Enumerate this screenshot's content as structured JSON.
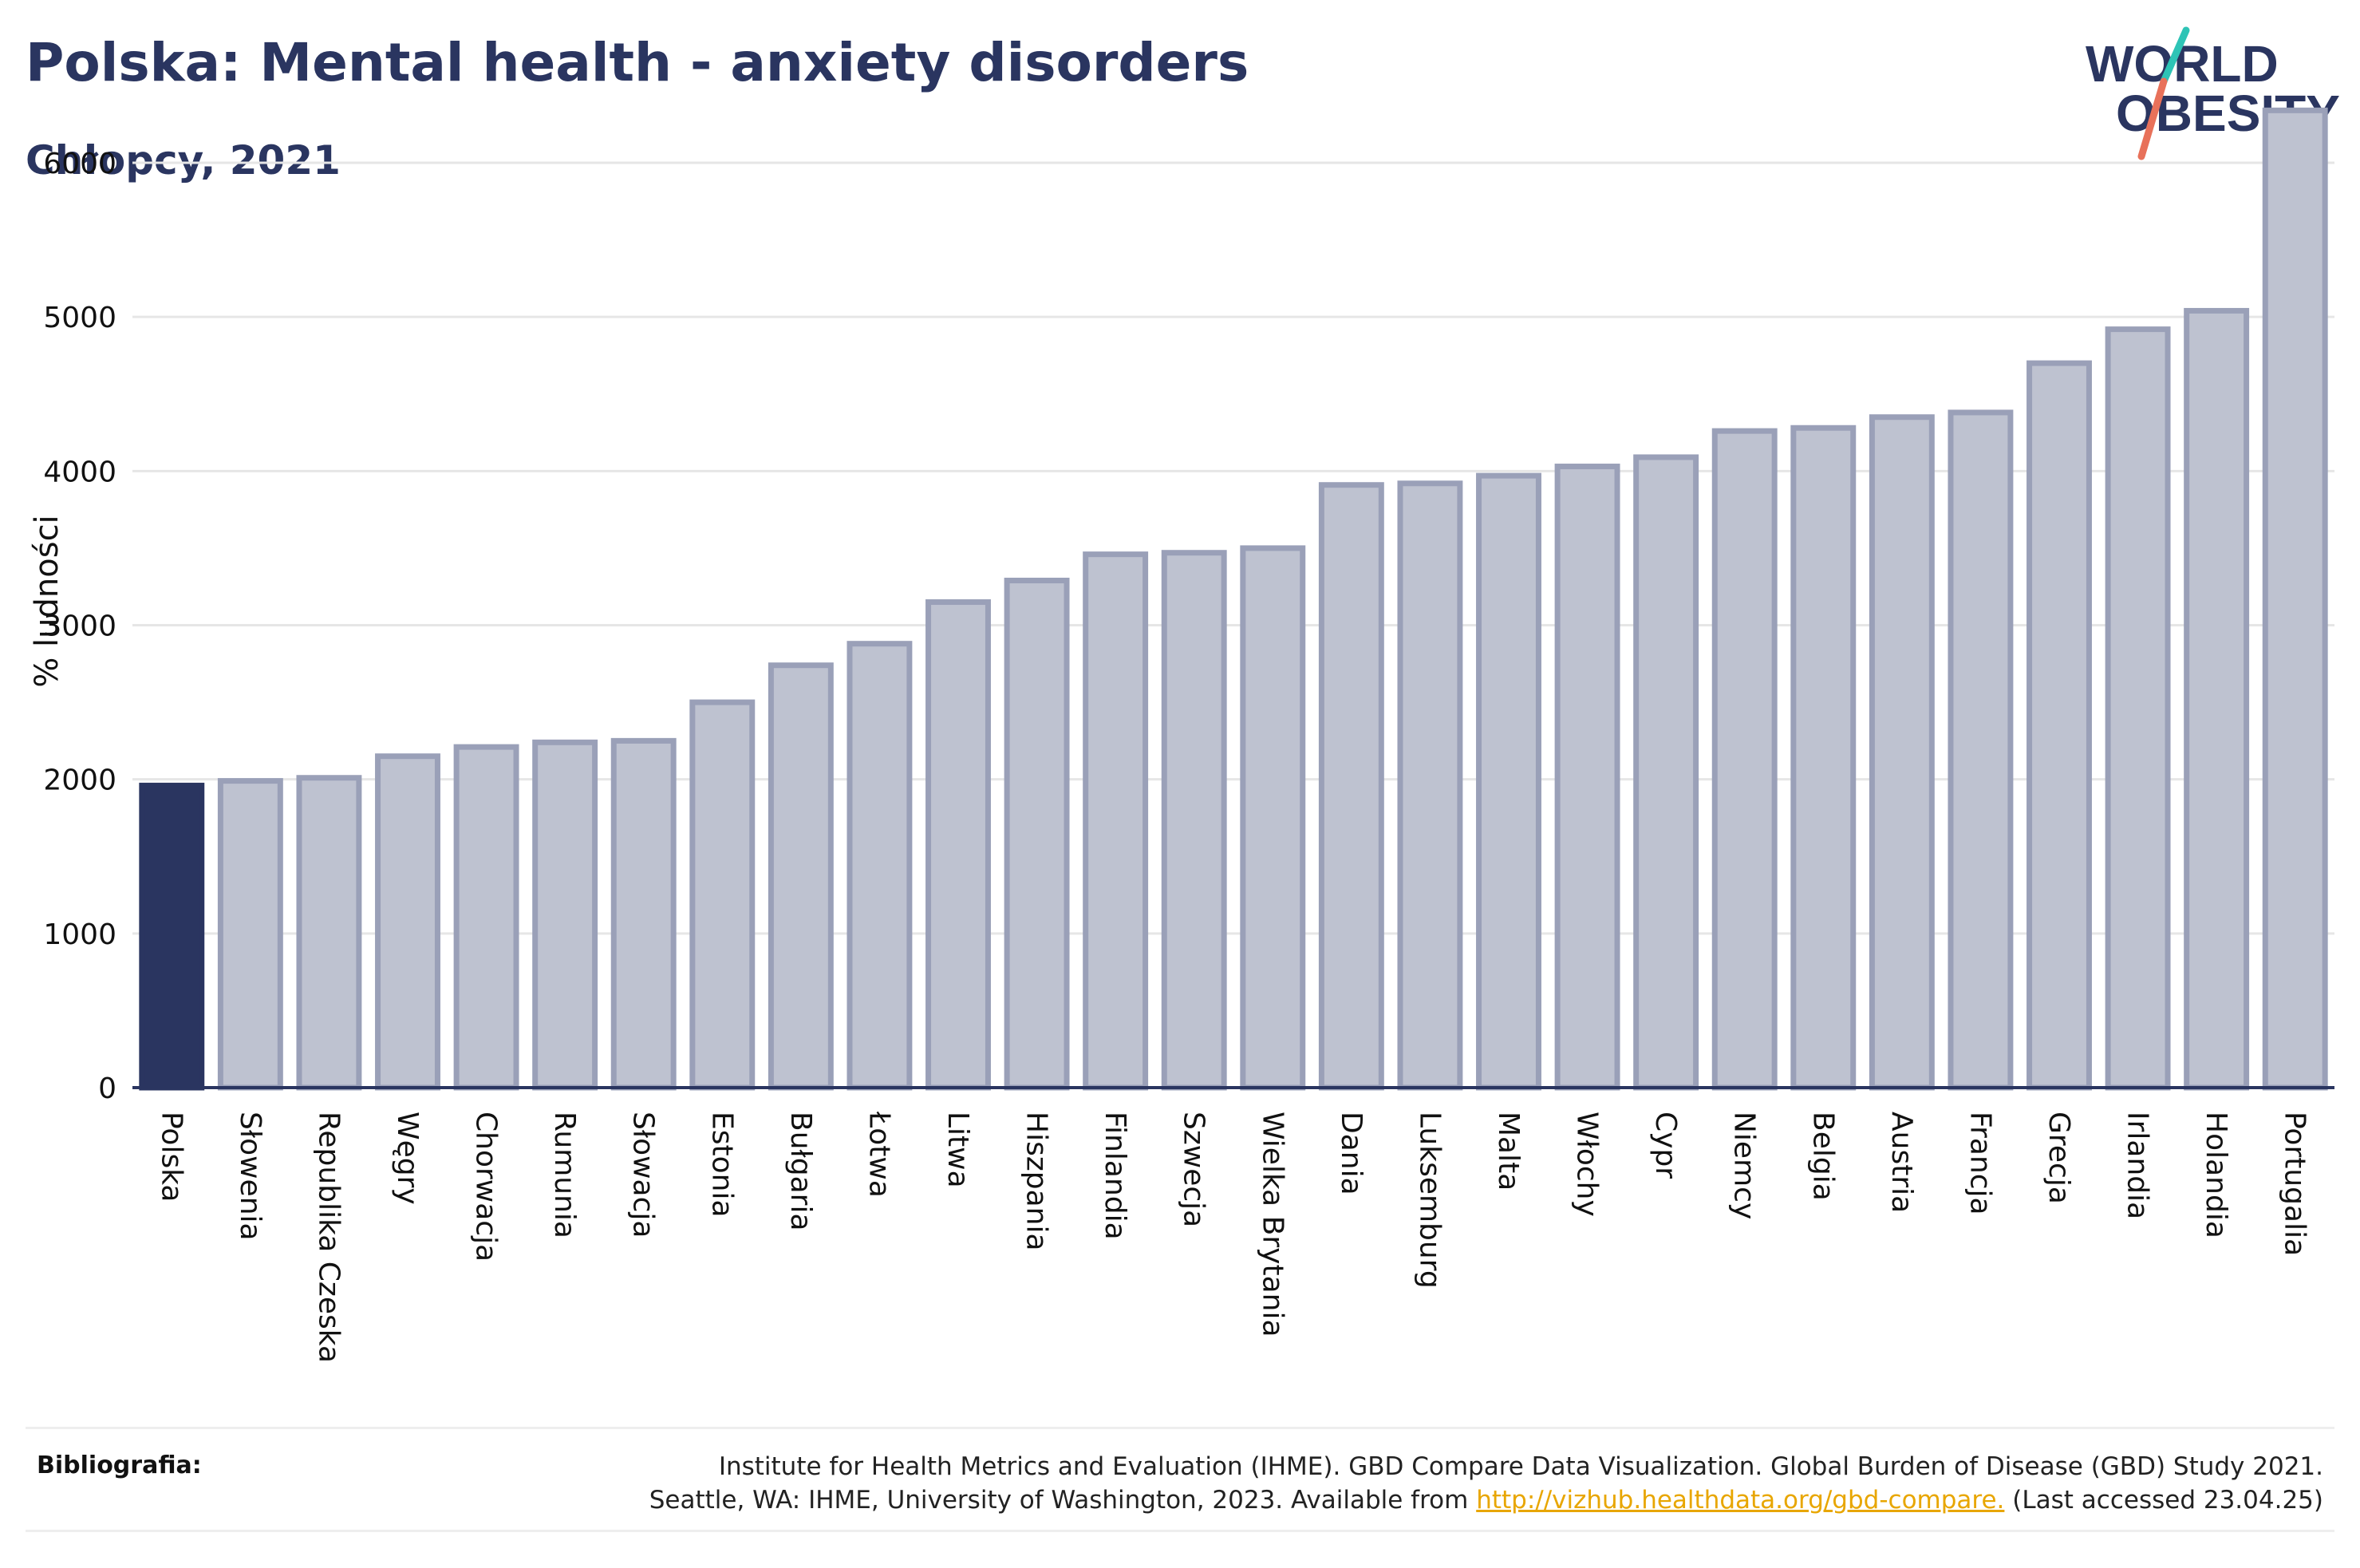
{
  "header": {
    "title": "Polska: Mental health - anxiety disorders",
    "subtitle": "Chłopcy, 2021"
  },
  "logo": {
    "line1": "WORLD",
    "line2": "OBESITY",
    "slash_colors": [
      "#2ec4b6",
      "#e8715a"
    ]
  },
  "colors": {
    "highlight": "#2a3560",
    "bar_fill": "#bec2d0",
    "bar_stroke": "#9aa0b8",
    "grid": "#e6e6e6",
    "axis": "#2a3560"
  },
  "chart_data": {
    "type": "bar",
    "ylabel": "% ludności",
    "ylim": [
      0,
      6500
    ],
    "yticks": [
      0,
      1000,
      2000,
      3000,
      4000,
      5000,
      6000
    ],
    "grid": true,
    "highlight_category": "Polska",
    "categories": [
      "Polska",
      "Słowenia",
      "Republika Czeska",
      "Węgry",
      "Chorwacja",
      "Rumunia",
      "Słowacja",
      "Estonia",
      "Bułgaria",
      "Łotwa",
      "Litwa",
      "Hiszpania",
      "Finlandia",
      "Szwecja",
      "Wielka Brytania",
      "Dania",
      "Luksemburg",
      "Malta",
      "Włochy",
      "Cypr",
      "Niemcy",
      "Belgia",
      "Austria",
      "Francja",
      "Grecja",
      "Irlandia",
      "Holandia",
      "Portugalia"
    ],
    "values": [
      1960,
      1990,
      2010,
      2150,
      2210,
      2240,
      2250,
      2500,
      2740,
      2880,
      3150,
      3290,
      3460,
      3470,
      3500,
      3910,
      3920,
      3970,
      4030,
      4090,
      4260,
      4280,
      4350,
      4380,
      4700,
      4920,
      5040,
      6340
    ]
  },
  "footer": {
    "bibliography_label": "Bibliografia:",
    "line1": "Institute for Health Metrics and Evaluation (IHME). GBD Compare Data Visualization. Global Burden of Disease (GBD) Study 2021.",
    "line2_prefix": "Seattle, WA: IHME, University of Washington, 2023. Available from ",
    "link": "http://vizhub.healthdata.org/gbd-compare.",
    "line2_suffix": " (Last accessed 23.04.25)"
  }
}
